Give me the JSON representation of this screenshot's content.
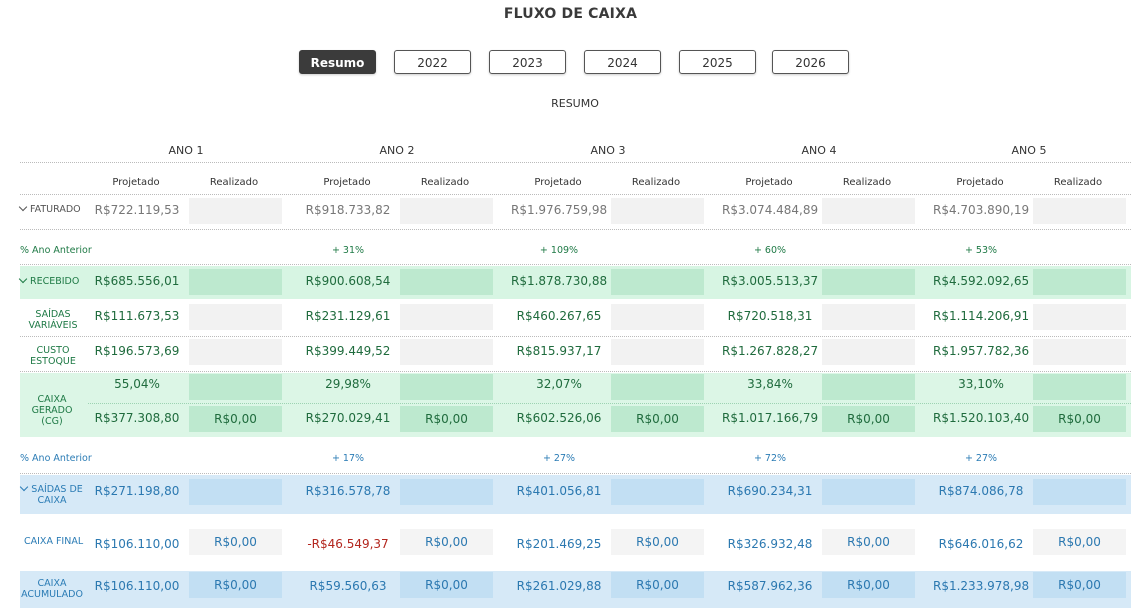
{
  "page": {
    "title": "FLUXO DE CAIXA",
    "subtitle": "RESUMO"
  },
  "tabs": [
    "Resumo",
    "2022",
    "2023",
    "2024",
    "2025",
    "2026"
  ],
  "years": [
    "ANO 1",
    "ANO 2",
    "ANO 3",
    "ANO 4",
    "ANO 5"
  ],
  "col_labels": {
    "projetado": "Projetado",
    "realizado": "Realizado"
  },
  "rows": {
    "faturado": {
      "label": "FATURADO",
      "values": [
        "R$722.119,53",
        "R$918.733,82",
        "R$1.976.759,98",
        "R$3.074.484,89",
        "R$4.703.890,19"
      ]
    },
    "pct1": {
      "label": "% Ano Anterior",
      "values": [
        "",
        "+ 31%",
        "+ 109%",
        "+ 60%",
        "+ 53%"
      ]
    },
    "recebido": {
      "label": "RECEBIDO",
      "values": [
        "R$685.556,01",
        "R$900.608,54",
        "R$1.878.730,88",
        "R$3.005.513,37",
        "R$4.592.092,65"
      ]
    },
    "saidas_variaveis": {
      "label": "SAÍDAS VARIÁVEIS",
      "values": [
        "R$111.673,53",
        "R$231.129,61",
        "R$460.267,65",
        "R$720.518,31",
        "R$1.114.206,91"
      ]
    },
    "custo_estoque": {
      "label": "CUSTO ESTOQUE",
      "values": [
        "R$196.573,69",
        "R$399.449,52",
        "R$815.937,17",
        "R$1.267.828,27",
        "R$1.957.782,36"
      ]
    },
    "caixa_gerado": {
      "label": "CAIXA GERADO (CG)",
      "percents": [
        "55,04%",
        "29,98%",
        "32,07%",
        "33,84%",
        "33,10%"
      ],
      "values": [
        "R$377.308,80",
        "R$270.029,41",
        "R$602.526,06",
        "R$1.017.166,79",
        "R$1.520.103,40"
      ],
      "realizado": [
        "R$0,00",
        "R$0,00",
        "R$0,00",
        "R$0,00",
        "R$0,00"
      ]
    },
    "pct2": {
      "label": "% Ano Anterior",
      "values": [
        "",
        "+ 17%",
        "+ 27%",
        "+ 72%",
        "+ 27%"
      ]
    },
    "saidas_caixa": {
      "label": "SAÍDAS DE CAIXA",
      "values": [
        "R$271.198,80",
        "R$316.578,78",
        "R$401.056,81",
        "R$690.234,31",
        "R$874.086,78"
      ]
    },
    "caixa_final": {
      "label": "CAIXA FINAL",
      "values": [
        "R$106.110,00",
        "-R$46.549,37",
        "R$201.469,25",
        "R$326.932,48",
        "R$646.016,62"
      ],
      "realizado": [
        "R$0,00",
        "R$0,00",
        "R$0,00",
        "R$0,00",
        "R$0,00"
      ]
    },
    "caixa_acumulado": {
      "label": "CAIXA ACUMULADO",
      "values": [
        "R$106.110,00",
        "R$59.560,63",
        "R$261.029,88",
        "R$587.962,36",
        "R$1.233.978,98"
      ],
      "realizado": [
        "R$0,00",
        "R$0,00",
        "R$0,00",
        "R$0,00",
        "R$0,00"
      ]
    }
  },
  "colors": {
    "green_text": "#1f6b3d",
    "blue_text": "#2b78b0",
    "negative": "#b3261e"
  }
}
